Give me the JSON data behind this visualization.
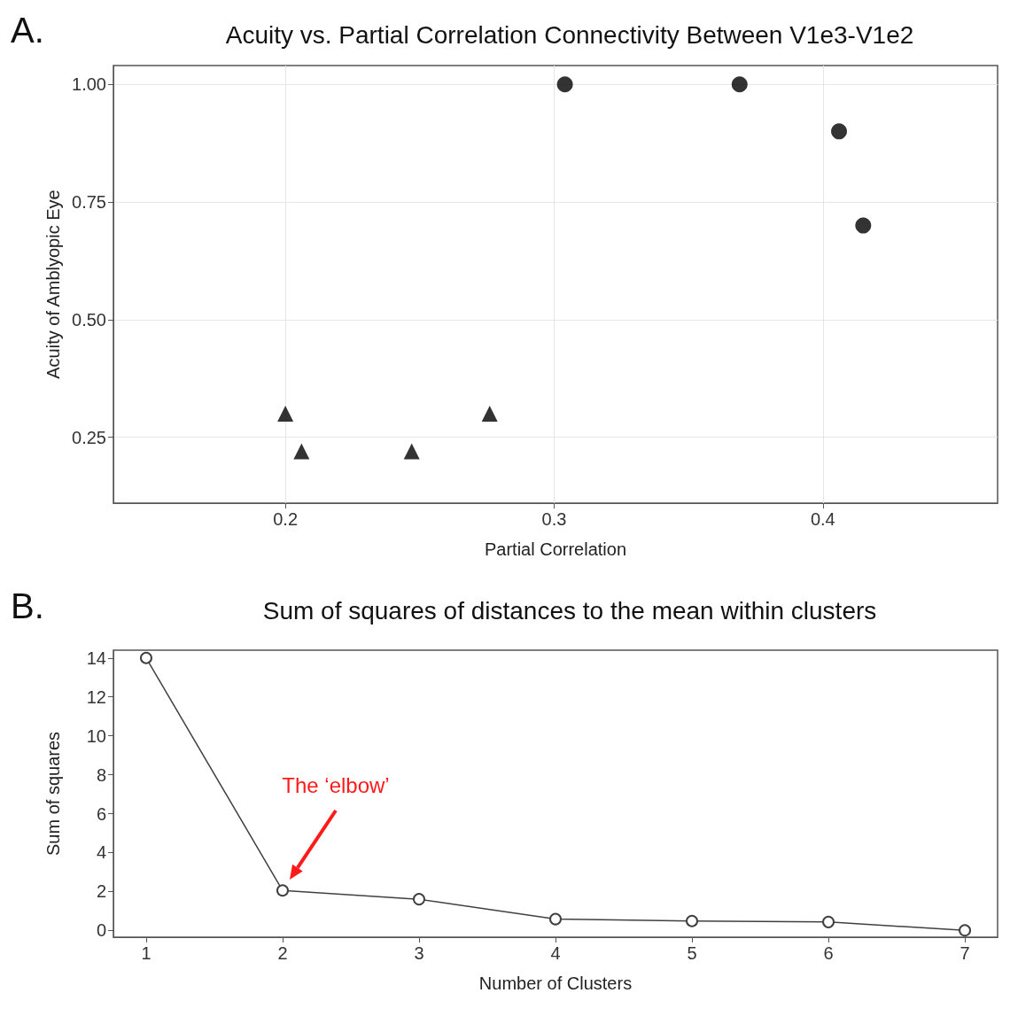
{
  "chart_data": [
    {
      "type": "scatter",
      "title": "Acuity vs. Partial Correlation Connectivity Between V1e3-V1e2",
      "xlabel": "Partial Correlation",
      "ylabel": "Acuity of Amblyopic Eye",
      "annotations": [
        "A."
      ],
      "series": [
        {
          "color": "#000000",
          "marker": "triangle",
          "x": [
            0.2,
            0.206,
            0.247,
            0.276
          ],
          "values": [
            0.3,
            0.22,
            0.22,
            0.3
          ]
        },
        {
          "color": "#000000",
          "marker": "circle",
          "x": [
            0.304,
            0.369,
            0.406,
            0.415
          ],
          "values": [
            1.0,
            1.0,
            0.9,
            0.7
          ]
        }
      ],
      "xlim": [
        0.136,
        0.465
      ],
      "xticks": [
        0.2,
        0.3,
        0.4
      ],
      "ylim": [
        0.11,
        1.04
      ],
      "yticks": [
        0.25,
        {
          "value": 0.5,
          "label": "0.50"
        },
        0.75,
        {
          "value": 1.0,
          "label": "1.00"
        }
      ],
      "grid": true
    },
    {
      "type": "line",
      "title": "Sum of squares of distances to the mean within clusters",
      "xlabel": "Number of Clusters",
      "ylabel": "Sum of squares",
      "annotations": [
        "B.",
        "The ‘elbow’"
      ],
      "series": [
        {
          "color": "#404040",
          "x": [
            1,
            2,
            3,
            4,
            5,
            6,
            7
          ],
          "values": [
            14,
            2.05,
            1.6,
            0.58,
            0.48,
            0.43,
            0.0
          ]
        }
      ],
      "marker": "circle",
      "line_style": "solid",
      "xlim": [
        0.76,
        7.24
      ],
      "xticks": [
        1,
        2,
        3,
        4,
        5,
        6,
        7
      ],
      "ylim": [
        -0.35,
        14.4
      ],
      "yticks": [
        0,
        2,
        4,
        6,
        8,
        10,
        12,
        14
      ],
      "grid": false
    }
  ]
}
